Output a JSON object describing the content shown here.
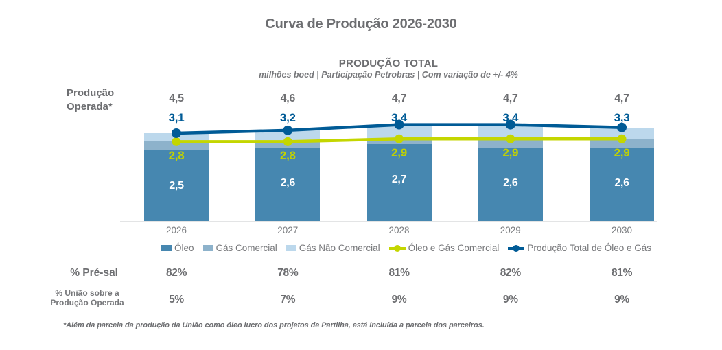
{
  "title": "Curva de Produção 2026-2030",
  "header": {
    "subtitle": "PRODUÇÃO TOTAL",
    "subtitle_note": "milhões boed | Participação Petrobras | Com variação de +/- 4%"
  },
  "left_axis_label": "Produção\nOperada*",
  "colors": {
    "oleo": "#4687b0",
    "gas_comercial": "#8db2cb",
    "gas_nao_comercial": "#bcd8ec",
    "line_comercial": "#c4d600",
    "line_total": "#005b96",
    "text_gray": "#6d6e71",
    "text_light_gray": "#7b7d80",
    "axis_line": "#e3e4e5",
    "value_white": "#ffffff"
  },
  "chart_data": {
    "type": "stacked-bar+line",
    "title": "PRODUÇÃO TOTAL",
    "subtitle": "milhões boed | Participação Petrobras | Com variação de +/- 4%",
    "unit": "milhões boed",
    "categories": [
      "2026",
      "2027",
      "2028",
      "2029",
      "2030"
    ],
    "ylim": [
      0,
      3.6
    ],
    "grid": false,
    "legend_position": "bottom",
    "series": [
      {
        "name": "Óleo",
        "type": "bar",
        "stack_role": "segment-bottom",
        "values": [
          2.5,
          2.6,
          2.7,
          2.6,
          2.6
        ],
        "labels": [
          "2,5",
          "2,6",
          "2,7",
          "2,6",
          "2,6"
        ]
      },
      {
        "name": "Gás Comercial",
        "type": "bar",
        "stack_role": "segment-middle; cumulative top equals 'Óleo e Gás Comercial' line",
        "values": [
          0.3,
          0.2,
          0.2,
          0.3,
          0.3
        ]
      },
      {
        "name": "Gás Não Comercial",
        "type": "bar",
        "stack_role": "segment-top; cumulative top equals 'Produção Total' line",
        "values": [
          0.3,
          0.4,
          0.5,
          0.5,
          0.4
        ]
      },
      {
        "name": "Óleo e Gás Comercial",
        "type": "line",
        "values": [
          2.8,
          2.8,
          2.9,
          2.9,
          2.9
        ],
        "labels": [
          "2,8",
          "2,8",
          "2,9",
          "2,9",
          "2,9"
        ]
      },
      {
        "name": "Produção Total de Óleo e Gás",
        "type": "line",
        "values": [
          3.1,
          3.2,
          3.4,
          3.4,
          3.3
        ],
        "labels": [
          "3,1",
          "3,2",
          "3,4",
          "3,4",
          "3,3"
        ]
      }
    ],
    "producao_operada": {
      "label": "Produção Operada*",
      "values": [
        4.5,
        4.6,
        4.7,
        4.7,
        4.7
      ],
      "labels": [
        "4,5",
        "4,6",
        "4,7",
        "4,7",
        "4,7"
      ]
    }
  },
  "rows": [
    {
      "label": "% Pré-sal",
      "values": [
        "82%",
        "78%",
        "81%",
        "82%",
        "81%"
      ]
    },
    {
      "label": "% União sobre a\nProdução Operada",
      "values": [
        "5%",
        "7%",
        "9%",
        "9%",
        "9%"
      ]
    }
  ],
  "footnote": "*Além da parcela da produção da União como óleo lucro dos projetos de Partilha, está incluída a parcela dos parceiros."
}
